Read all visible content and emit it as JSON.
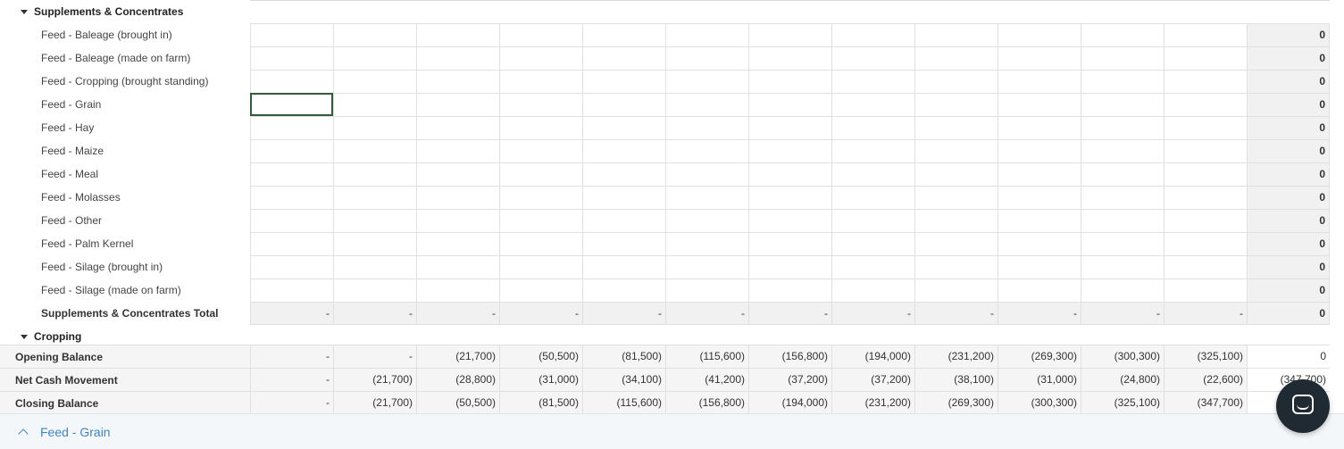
{
  "section": {
    "title": "Supplements & Concentrates",
    "next_title": "Cropping",
    "rows": [
      {
        "label": "Feed - Baleage (brought in)",
        "total": "0"
      },
      {
        "label": "Feed - Baleage (made on farm)",
        "total": "0"
      },
      {
        "label": "Feed - Cropping (brought standing)",
        "total": "0"
      },
      {
        "label": "Feed - Grain",
        "total": "0"
      },
      {
        "label": "Feed - Hay",
        "total": "0"
      },
      {
        "label": "Feed - Maize",
        "total": "0"
      },
      {
        "label": "Feed - Meal",
        "total": "0"
      },
      {
        "label": "Feed - Molasses",
        "total": "0"
      },
      {
        "label": "Feed - Other",
        "total": "0"
      },
      {
        "label": "Feed - Palm Kernel",
        "total": "0"
      },
      {
        "label": "Feed - Silage (brought in)",
        "total": "0"
      },
      {
        "label": "Feed - Silage (made on farm)",
        "total": "0"
      }
    ],
    "total_row": {
      "label": "Supplements & Concentrates Total",
      "values": [
        "-",
        "-",
        "-",
        "-",
        "-",
        "-",
        "-",
        "-",
        "-",
        "-",
        "-",
        "-"
      ],
      "total": "0"
    }
  },
  "summary": {
    "opening": {
      "label": "Opening Balance",
      "values": [
        "-",
        "-",
        "(21,700)",
        "(50,500)",
        "(81,500)",
        "(115,600)",
        "(156,800)",
        "(194,000)",
        "(231,200)",
        "(269,300)",
        "(300,300)",
        "(325,100)"
      ],
      "total": "0"
    },
    "net": {
      "label": "Net Cash Movement",
      "values": [
        "-",
        "(21,700)",
        "(28,800)",
        "(31,000)",
        "(34,100)",
        "(41,200)",
        "(37,200)",
        "(37,200)",
        "(38,100)",
        "(31,000)",
        "(24,800)",
        "(22,600)"
      ],
      "total": "(347,700)"
    },
    "closing": {
      "label": "Closing Balance",
      "values": [
        "-",
        "(21,700)",
        "(50,500)",
        "(81,500)",
        "(115,600)",
        "(156,800)",
        "(194,000)",
        "(231,200)",
        "(269,300)",
        "(300,300)",
        "(325,100)",
        "(347,700)"
      ],
      "total": ""
    }
  },
  "bottom_bar": {
    "title": "Feed - Grain"
  },
  "selected": {
    "row": 3,
    "col": 0
  },
  "icons": {
    "expand": "caret-down-icon",
    "collapse": "chevron-up-icon",
    "chat": "chat-icon"
  }
}
